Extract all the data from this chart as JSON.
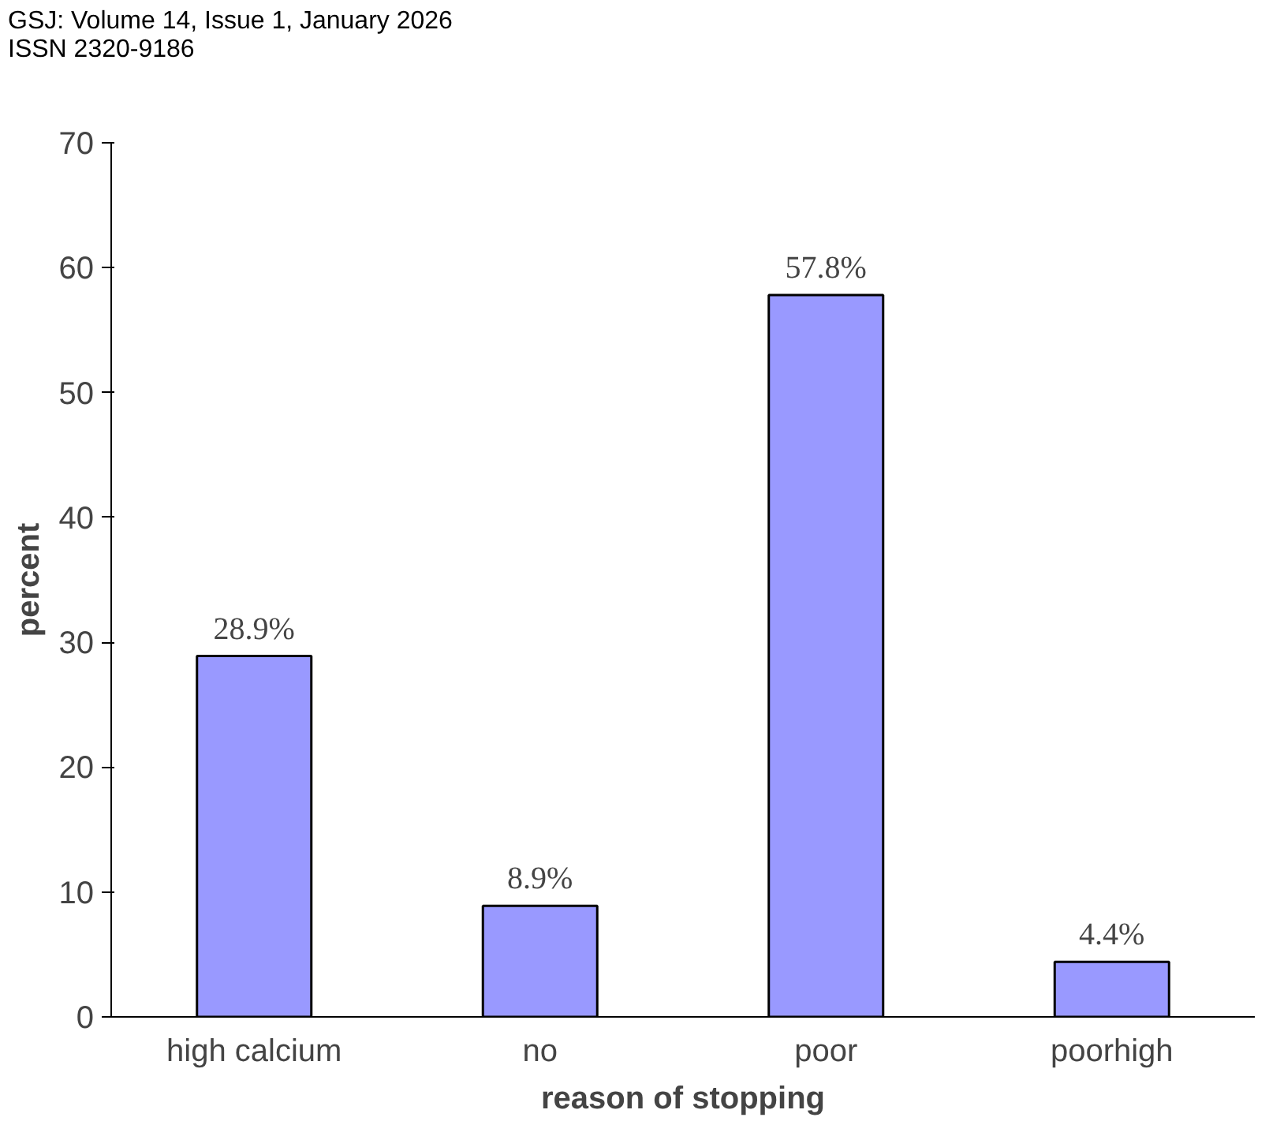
{
  "chart_data": {
    "type": "bar",
    "xlabel": "reason of stopping",
    "ylabel": "percent",
    "annotations": [
      "GSJ: Volume 14, Issue 1, January 2026",
      "ISSN 2320-9186"
    ],
    "categories": [
      "high calcium",
      "no",
      "poor",
      "poorhigh"
    ],
    "values": [
      28.9,
      8.9,
      57.8,
      4.4
    ],
    "value_labels": [
      "28.9%",
      "8.9%",
      "57.8%",
      "4.4%"
    ],
    "color": "#9999ff",
    "ylim": [
      0,
      70
    ],
    "yticks": [
      0,
      10,
      20,
      30,
      40,
      50,
      60,
      70
    ],
    "grid": false
  }
}
